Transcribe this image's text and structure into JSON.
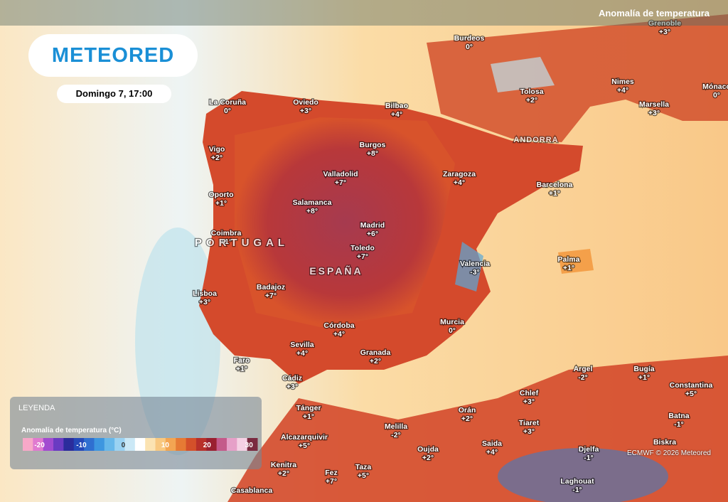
{
  "header": {
    "logo": "METEORED",
    "datetime": "Domingo 7, 17:00",
    "layer": "Anomalía de temperatura"
  },
  "cities": [
    {
      "name": "Grenoble",
      "value": "+3°"
    },
    {
      "name": "Burdeos",
      "value": "0°"
    },
    {
      "name": "Tolosa",
      "value": "+2°"
    },
    {
      "name": "Nimes",
      "value": "+4°"
    },
    {
      "name": "Marsella",
      "value": "+3°"
    },
    {
      "name": "Mónaco",
      "value": "0°"
    },
    {
      "name": "La Coruña",
      "value": "0°"
    },
    {
      "name": "Oviedo",
      "value": "+3°"
    },
    {
      "name": "Bilbao",
      "value": "+4°"
    },
    {
      "name": "Vigo",
      "value": "+2°"
    },
    {
      "name": "Burgos",
      "value": "+8°"
    },
    {
      "name": "Valladolid",
      "value": "+7°"
    },
    {
      "name": "Zaragoza",
      "value": "+4°"
    },
    {
      "name": "Barcelona",
      "value": "+1°"
    },
    {
      "name": "Oporto",
      "value": "+1°"
    },
    {
      "name": "Salamanca",
      "value": "+8°"
    },
    {
      "name": "Madrid",
      "value": "+6°"
    },
    {
      "name": "Coimbra",
      "value": "+1°"
    },
    {
      "name": "Toledo",
      "value": "+7°"
    },
    {
      "name": "Valencia",
      "value": "-3°"
    },
    {
      "name": "Palma",
      "value": "+1°"
    },
    {
      "name": "Lisboa",
      "value": "+3°"
    },
    {
      "name": "Badajoz",
      "value": "+7°"
    },
    {
      "name": "Córdoba",
      "value": "+4°"
    },
    {
      "name": "Murcia",
      "value": "0°"
    },
    {
      "name": "Sevilla",
      "value": "+4°"
    },
    {
      "name": "Granada",
      "value": "+2°"
    },
    {
      "name": "Faro",
      "value": "+1°"
    },
    {
      "name": "Cádiz",
      "value": "+3°"
    },
    {
      "name": "Argel",
      "value": "-2°"
    },
    {
      "name": "Bugía",
      "value": "+1°"
    },
    {
      "name": "Constantina",
      "value": "+5°"
    },
    {
      "name": "Tánger",
      "value": "+1°"
    },
    {
      "name": "Chlef",
      "value": "+3°"
    },
    {
      "name": "Orán",
      "value": "+2°"
    },
    {
      "name": "Tiaret",
      "value": "+3°"
    },
    {
      "name": "Batna",
      "value": "-1°"
    },
    {
      "name": "Melilla",
      "value": "-2°"
    },
    {
      "name": "Alcazarquivir",
      "value": "+5°"
    },
    {
      "name": "Saida",
      "value": "+4°"
    },
    {
      "name": "Oujda",
      "value": "+2°"
    },
    {
      "name": "Djelfa",
      "value": "-1°"
    },
    {
      "name": "Kenitra",
      "value": "+2°"
    },
    {
      "name": "Fez",
      "value": "+7°"
    },
    {
      "name": "Taza",
      "value": "+5°"
    },
    {
      "name": "Laghouat",
      "value": "-1°"
    },
    {
      "name": "Biskra"
    },
    {
      "name": "Casablanca"
    }
  ],
  "regions": [
    "PORTUGAL",
    "ESPAÑA",
    "ANDORRA"
  ],
  "legend": {
    "title": "LEYENDA",
    "scale_title": "Anomalía de temperatura (°C)",
    "ticks": [
      -20,
      -10,
      0,
      10,
      20,
      30
    ]
  },
  "credit": "ECMWF © 2026 Meteored"
}
